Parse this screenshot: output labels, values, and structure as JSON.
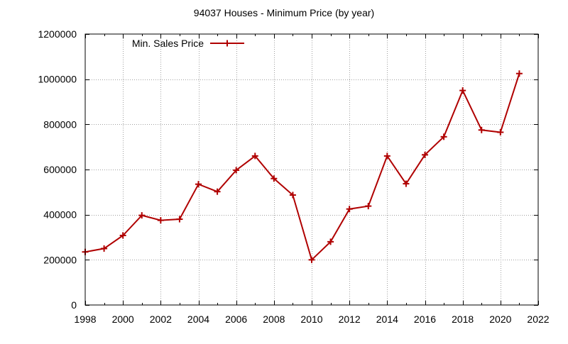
{
  "chart_data": {
    "type": "line",
    "title": "94037 Houses - Minimum Price (by year)",
    "xlabel": "",
    "ylabel": "",
    "xlim": [
      1998,
      2022
    ],
    "ylim": [
      0,
      1200000
    ],
    "x_ticks": [
      "1998",
      "2000",
      "2002",
      "2004",
      "2006",
      "2008",
      "2010",
      "2012",
      "2014",
      "2016",
      "2018",
      "2020",
      "2022"
    ],
    "y_ticks": [
      "0",
      "200000",
      "400000",
      "600000",
      "800000",
      "1000000",
      "1200000"
    ],
    "grid": true,
    "legend_position": "top-left",
    "x": [
      1998,
      1999,
      2000,
      2001,
      2002,
      2003,
      2004,
      2005,
      2006,
      2007,
      2008,
      2009,
      2010,
      2011,
      2012,
      2013,
      2014,
      2015,
      2016,
      2017,
      2018,
      2019,
      2020,
      2021
    ],
    "series": [
      {
        "name": "Min. Sales Price",
        "color": "#b00000",
        "marker": "plus",
        "values": [
          235000,
          250000,
          308000,
          397000,
          375000,
          380000,
          535000,
          502000,
          597000,
          660000,
          560000,
          487000,
          200000,
          280000,
          425000,
          438000,
          660000,
          537000,
          665000,
          745000,
          950000,
          775000,
          765000,
          1025000
        ]
      }
    ]
  }
}
